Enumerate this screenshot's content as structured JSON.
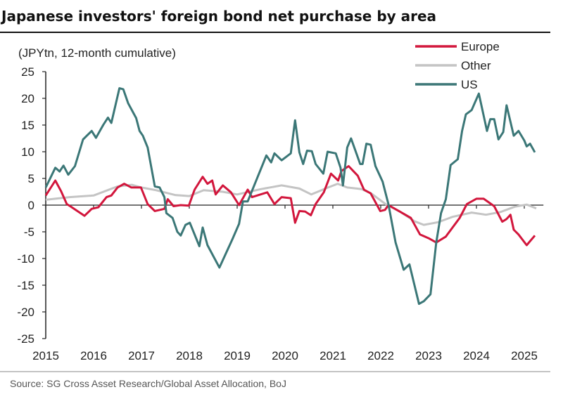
{
  "chart_data": {
    "type": "line",
    "title": "Japanese investors' foreign bond net purchase by area",
    "ylabel": "(JPYtn, 12-month cumulative)",
    "xlabel": "",
    "source": "Source: SG Cross Asset Research/Global Asset Allocation, BoJ",
    "xlim": [
      2015,
      2025.4
    ],
    "ylim": [
      -25,
      25
    ],
    "yticks": [
      "25",
      "20",
      "15",
      "10",
      "5",
      "0",
      "-5",
      "-10",
      "-15",
      "-20",
      "-25"
    ],
    "ytick_values": [
      25,
      20,
      15,
      10,
      5,
      0,
      -5,
      -10,
      -15,
      -20,
      -25
    ],
    "xticks": [
      "2015",
      "2016",
      "2017",
      "2018",
      "2019",
      "2020",
      "2021",
      "2022",
      "2023",
      "2024",
      "2025"
    ],
    "xtick_values": [
      2015,
      2016,
      2017,
      2018,
      2019,
      2020,
      2021,
      2022,
      2023,
      2024,
      2025
    ],
    "grid": false,
    "legend_position": "top-right",
    "series": [
      {
        "name": "Europe",
        "color": "#d2163c",
        "x": [
          2015,
          2015.2,
          2015.32,
          2015.44,
          2015.51,
          2015.81,
          2015.96,
          2016.1,
          2016.27,
          2016.37,
          2016.5,
          2016.64,
          2016.79,
          2016.99,
          2017.13,
          2017.28,
          2017.48,
          2017.55,
          2017.67,
          2017.82,
          2017.99,
          2018.11,
          2018.28,
          2018.38,
          2018.48,
          2018.55,
          2018.7,
          2018.87,
          2019.04,
          2019.22,
          2019.31,
          2019.63,
          2019.78,
          2019.93,
          2020.12,
          2020.21,
          2020.3,
          2020.42,
          2020.54,
          2020.64,
          2020.81,
          2020.96,
          2021.11,
          2021.18,
          2021.33,
          2021.52,
          2021.65,
          2021.79,
          2021.99,
          2022.09,
          2022.16,
          2022.38,
          2022.63,
          2022.82,
          2023.0,
          2023.16,
          2023.36,
          2023.65,
          2023.8,
          2024.0,
          2024.15,
          2024.37,
          2024.54,
          2024.63,
          2024.71,
          2024.78,
          2024.88,
          2025.05,
          2025.22
        ],
        "y": [
          1.8,
          4.6,
          2.6,
          0.2,
          -0.2,
          -2,
          -0.7,
          -0.4,
          1.5,
          1.8,
          3.3,
          4,
          3.3,
          3.3,
          0.2,
          -1.1,
          -0.7,
          1.1,
          -0.2,
          0,
          -0.1,
          2.9,
          5.3,
          4,
          4.6,
          2,
          3.7,
          2.4,
          0,
          2.9,
          1.5,
          2.4,
          0.2,
          1.5,
          1.3,
          -3.3,
          -1.1,
          -1.2,
          -1.9,
          0.2,
          2.4,
          5.9,
          4.6,
          6.4,
          7.3,
          5.5,
          2.9,
          2.2,
          -1.1,
          -0.9,
          0,
          -1.1,
          -2.4,
          -5.5,
          -6.2,
          -7,
          -5.9,
          -2.4,
          0.2,
          1.2,
          1.2,
          -0.2,
          -3.1,
          -2.6,
          -1.8,
          -4.6,
          -5.5,
          -7.5,
          -5.7
        ]
      },
      {
        "name": "Other",
        "color": "#c4c4c4",
        "x": [
          2015,
          2015.5,
          2016,
          2016.5,
          2016.8,
          2017,
          2017.3,
          2017.7,
          2018,
          2018.3,
          2018.7,
          2019,
          2019.5,
          2019.93,
          2020.3,
          2020.55,
          2020.9,
          2021.1,
          2021.3,
          2021.6,
          2021.8,
          2022.1,
          2022.4,
          2022.7,
          2022.9,
          2023.2,
          2023.5,
          2023.9,
          2024.2,
          2024.5,
          2024.8,
          2025.05,
          2025.25
        ],
        "y": [
          1.0,
          1.5,
          1.8,
          3.5,
          3.8,
          3.3,
          2.8,
          1.9,
          1.7,
          2.8,
          2.5,
          2.0,
          3.0,
          3.7,
          3.1,
          2.0,
          3.3,
          4.0,
          3.3,
          3.0,
          2.2,
          0.2,
          -1.2,
          -3.0,
          -3.7,
          -3.2,
          -2.2,
          -1.4,
          -1.8,
          -1.3,
          -0.3,
          0.1,
          -0.6
        ]
      },
      {
        "name": "US",
        "color": "#3b7777",
        "x": [
          2015,
          2015.2,
          2015.29,
          2015.37,
          2015.47,
          2015.61,
          2015.78,
          2015.96,
          2016.05,
          2016.2,
          2016.3,
          2016.37,
          2016.54,
          2016.62,
          2016.72,
          2016.89,
          2016.96,
          2017.03,
          2017.13,
          2017.28,
          2017.38,
          2017.48,
          2017.52,
          2017.65,
          2017.75,
          2017.82,
          2017.92,
          2018.01,
          2018.21,
          2018.28,
          2018.38,
          2018.63,
          2018.9,
          2019.04,
          2019.12,
          2019.22,
          2019.61,
          2019.71,
          2019.78,
          2019.93,
          2020.12,
          2020.21,
          2020.3,
          2020.38,
          2020.46,
          2020.56,
          2020.64,
          2020.8,
          2020.89,
          2021.06,
          2021.16,
          2021.21,
          2021.3,
          2021.38,
          2021.57,
          2021.62,
          2021.7,
          2021.79,
          2021.89,
          2022.04,
          2022.16,
          2022.31,
          2022.48,
          2022.6,
          2022.8,
          2022.9,
          2023.04,
          2023.16,
          2023.26,
          2023.36,
          2023.46,
          2023.61,
          2023.7,
          2023.78,
          2023.9,
          2024.05,
          2024.22,
          2024.29,
          2024.37,
          2024.46,
          2024.56,
          2024.63,
          2024.78,
          2024.88,
          2025.0,
          2025.05,
          2025.12,
          2025.22
        ],
        "y": [
          3.3,
          7,
          6.3,
          7.4,
          5.7,
          7.3,
          12.3,
          13.9,
          12.6,
          15,
          16.4,
          15.4,
          21.9,
          21.7,
          19.1,
          16.3,
          13.9,
          13,
          10.8,
          3.5,
          3.3,
          1.5,
          -1.5,
          -2.4,
          -5,
          -5.7,
          -3.7,
          -3.3,
          -7.7,
          -4.2,
          -7.5,
          -11.7,
          -6.4,
          -3.5,
          0.7,
          0.7,
          9.3,
          8,
          9.7,
          8.4,
          9.7,
          15.9,
          9.9,
          7.7,
          10.2,
          10.1,
          7.7,
          5.9,
          10,
          9.7,
          7,
          3.7,
          10.8,
          12.5,
          7.7,
          7.7,
          11.5,
          11.3,
          7.3,
          4.4,
          0.2,
          -7,
          -12.1,
          -11.1,
          -18.5,
          -18,
          -16.7,
          -7,
          -1.5,
          1.1,
          7.5,
          8.6,
          13.9,
          17,
          17.8,
          20.9,
          13.9,
          16.1,
          16.1,
          12.3,
          13.7,
          18.7,
          13,
          13.9,
          12.1,
          11,
          11.5,
          9.9
        ]
      }
    ]
  }
}
